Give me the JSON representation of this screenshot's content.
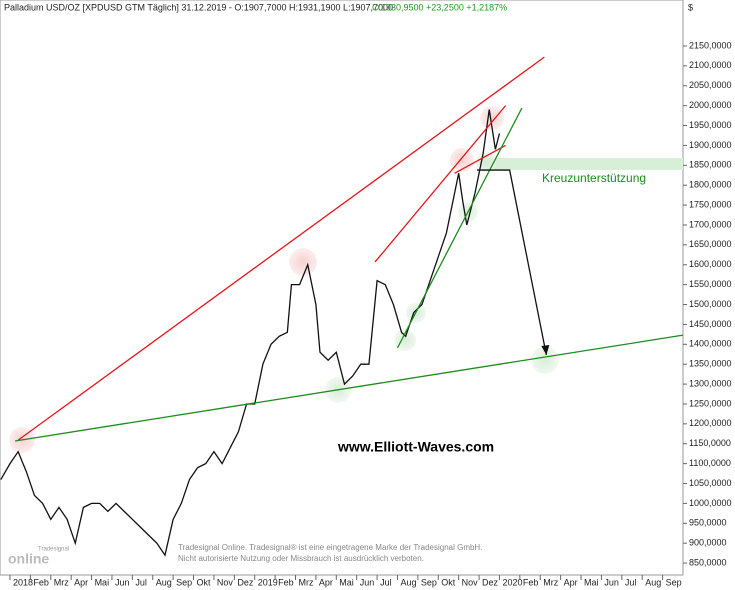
{
  "chart_data": {
    "type": "line",
    "title": "Palladium USD/OZ [XPDUSD GTM  Täglich] 31.12.2019 - O:1907,7000 H:1931,1900 L:1907,7000",
    "subtitle": "C:1930,9500 +23,2500 +1,2187%",
    "currency": "$",
    "annotations": [
      "Kreuzunterstützung",
      "www.Elliott-Waves.com"
    ],
    "footer": [
      "Tradesignal Online. Tradesignal® ist eine eingetragene Marke der Tradesignal GmbH.",
      "Nicht autorisierte Nutzung oder Missbrauch ist ausdrücklich verboten."
    ],
    "logo": [
      "Tradesignal",
      "online"
    ],
    "xlim": [
      -0.49,
      33
    ],
    "ylim": [
      820,
      2265.6
    ],
    "xticks": [
      {
        "value": 0,
        "label": "2018"
      },
      {
        "value": 1,
        "label": "Feb"
      },
      {
        "value": 2,
        "label": "Mrz"
      },
      {
        "value": 3,
        "label": "Apr"
      },
      {
        "value": 4,
        "label": "Mai"
      },
      {
        "value": 5,
        "label": "Jun"
      },
      {
        "value": 6,
        "label": "Jul"
      },
      {
        "value": 7,
        "label": "Aug"
      },
      {
        "value": 8,
        "label": "Sep"
      },
      {
        "value": 9,
        "label": "Okt"
      },
      {
        "value": 10,
        "label": "Nov"
      },
      {
        "value": 11,
        "label": "Dez"
      },
      {
        "value": 12,
        "label": "2019"
      },
      {
        "value": 13,
        "label": "Feb"
      },
      {
        "value": 14,
        "label": "Mrz"
      },
      {
        "value": 15,
        "label": "Apr"
      },
      {
        "value": 16,
        "label": "Mai"
      },
      {
        "value": 17,
        "label": "Jun"
      },
      {
        "value": 18,
        "label": "Jul"
      },
      {
        "value": 19,
        "label": "Aug"
      },
      {
        "value": 20,
        "label": "Sep"
      },
      {
        "value": 21,
        "label": "Okt"
      },
      {
        "value": 22,
        "label": "Nov"
      },
      {
        "value": 23,
        "label": "Dez"
      },
      {
        "value": 24,
        "label": "2020"
      },
      {
        "value": 25,
        "label": "Feb"
      },
      {
        "value": 26,
        "label": "Mrz"
      },
      {
        "value": 27,
        "label": "Apr"
      },
      {
        "value": 28,
        "label": "Mai"
      },
      {
        "value": 29,
        "label": "Jun"
      },
      {
        "value": 30,
        "label": "Jul"
      },
      {
        "value": 31,
        "label": "Aug"
      },
      {
        "value": 32,
        "label": "Sep"
      }
    ],
    "yticks": [
      {
        "value": 850,
        "label": "850,0000"
      },
      {
        "value": 900,
        "label": "900,0000"
      },
      {
        "value": 950,
        "label": "950,0000"
      },
      {
        "value": 1000,
        "label": "1000,0000"
      },
      {
        "value": 1050,
        "label": "1050,0000"
      },
      {
        "value": 1100,
        "label": "1100,0000"
      },
      {
        "value": 1150,
        "label": "1150,0000"
      },
      {
        "value": 1200,
        "label": "1200,0000"
      },
      {
        "value": 1250,
        "label": "1250,0000"
      },
      {
        "value": 1300,
        "label": "1300,0000"
      },
      {
        "value": 1350,
        "label": "1350,0000"
      },
      {
        "value": 1400,
        "label": "1400,0000"
      },
      {
        "value": 1450,
        "label": "1450,0000"
      },
      {
        "value": 1500,
        "label": "1500,0000"
      },
      {
        "value": 1550,
        "label": "1550,0000"
      },
      {
        "value": 1600,
        "label": "1600,0000"
      },
      {
        "value": 1650,
        "label": "1650,0000"
      },
      {
        "value": 1700,
        "label": "1700,0000"
      },
      {
        "value": 1750,
        "label": "1750,0000"
      },
      {
        "value": 1800,
        "label": "1800,0000"
      },
      {
        "value": 1850,
        "label": "1850,0000"
      },
      {
        "value": 1900,
        "label": "1900,0000"
      },
      {
        "value": 1950,
        "label": "1950,0000"
      },
      {
        "value": 2000,
        "label": "2000,0000"
      },
      {
        "value": 2050,
        "label": "2050,0000"
      },
      {
        "value": 2100,
        "label": "2100,0000"
      },
      {
        "value": 2150,
        "label": "2150,0000"
      }
    ],
    "series": [
      {
        "color": "#111111",
        "x": [
          -0.45,
          0,
          0.4,
          0.8,
          1.2,
          1.6,
          2,
          2.4,
          2.8,
          3.2,
          3.6,
          4,
          4.4,
          4.8,
          5.2,
          5.6,
          6,
          6.4,
          6.8,
          7.2,
          7.6,
          8,
          8.4,
          8.8,
          9.2,
          9.6,
          10,
          10.4,
          10.8,
          11.2,
          11.6,
          12,
          12.4,
          12.8,
          13.2,
          13.6,
          13.8,
          14.2,
          14.6,
          15,
          15.2,
          15.6,
          16,
          16.4,
          16.8,
          17.2,
          17.6,
          18,
          18.4,
          18.8,
          19.2,
          19.4,
          19.8,
          20.2,
          20.6,
          21,
          21.4,
          21.8,
          22,
          22.2,
          22.4,
          22.8,
          23.2,
          23.5,
          23.8,
          24
        ],
        "values": [
          1060,
          1100,
          1130,
          1080,
          1020,
          1000,
          960,
          990,
          960,
          900,
          990,
          1000,
          1000,
          980,
          1000,
          980,
          960,
          940,
          920,
          900,
          870,
          960,
          1000,
          1060,
          1090,
          1100,
          1130,
          1100,
          1140,
          1180,
          1250,
          1250,
          1350,
          1400,
          1420,
          1430,
          1550,
          1550,
          1600,
          1500,
          1380,
          1360,
          1380,
          1300,
          1320,
          1350,
          1350,
          1560,
          1550,
          1500,
          1430,
          1420,
          1480,
          1500,
          1560,
          1620,
          1680,
          1780,
          1830,
          1760,
          1700,
          1780,
          1880,
          1990,
          1890,
          1930
        ]
      }
    ],
    "lines": [
      {
        "color": "#e8141a",
        "x": [
          0.4,
          26.2
        ],
        "y": [
          1159,
          2122
        ]
      },
      {
        "color": "#e8141a",
        "x": [
          17.9,
          24.3
        ],
        "y": [
          1607,
          2000
        ]
      },
      {
        "color": "#e8141a",
        "x": [
          21.8,
          24.3
        ],
        "y": [
          1830,
          1900
        ]
      },
      {
        "color": "#1c8c1c",
        "x": [
          0.25,
          33
        ],
        "y": [
          1157,
          1423
        ]
      },
      {
        "color": "#1c8c1c",
        "x": [
          19,
          25.1
        ],
        "y": [
          1391,
          1994
        ]
      },
      {
        "color": "#111111",
        "x": [
          22.9,
          24.5,
          26.3
        ],
        "y": [
          1838,
          1838,
          1373
        ]
      }
    ]
  }
}
